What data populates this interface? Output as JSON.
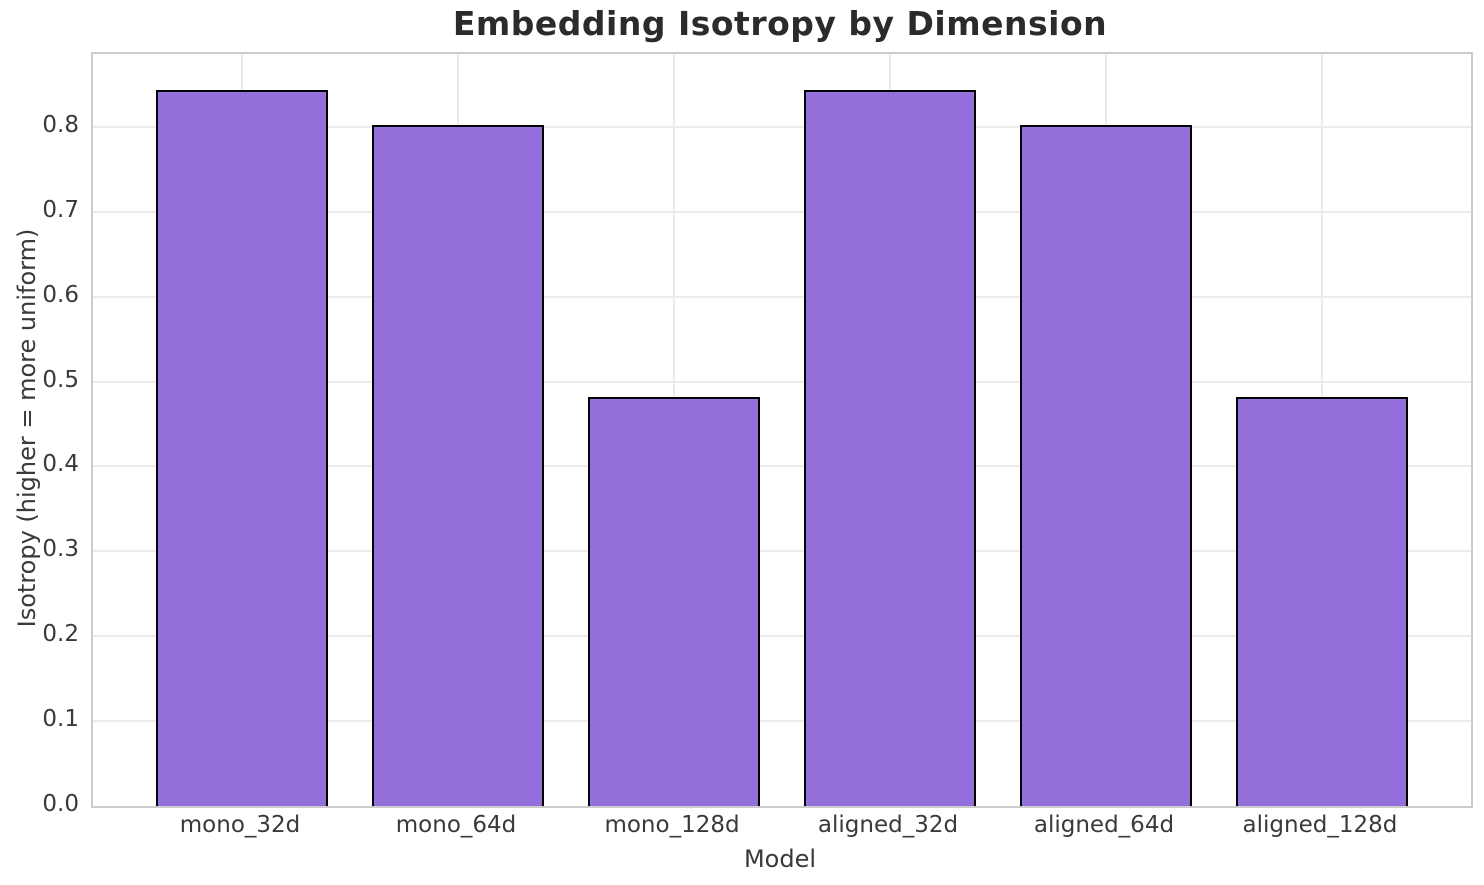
{
  "chart_data": {
    "type": "bar",
    "title": "Embedding Isotropy by Dimension",
    "xlabel": "Model",
    "ylabel": "Isotropy (higher = more uniform)",
    "categories": [
      "mono_32d",
      "mono_64d",
      "mono_128d",
      "aligned_32d",
      "aligned_64d",
      "aligned_128d"
    ],
    "values": [
      0.844,
      0.802,
      0.482,
      0.844,
      0.802,
      0.482
    ],
    "ylim": [
      0,
      0.886
    ],
    "xlim": [
      -0.69,
      5.69
    ],
    "bar_width": 0.8,
    "yticks": [
      "0.0",
      "0.1",
      "0.2",
      "0.3",
      "0.4",
      "0.5",
      "0.6",
      "0.7",
      "0.8"
    ],
    "grid": true,
    "legend": "none",
    "colors": {
      "bar_fill": "#9370DB",
      "bar_edge": "#000000",
      "grid": "#ebebeb",
      "spine": "#cccccc",
      "title_text": "#2b2b2b",
      "tick_text": "#3a3a3a",
      "background": "#ffffff"
    }
  }
}
